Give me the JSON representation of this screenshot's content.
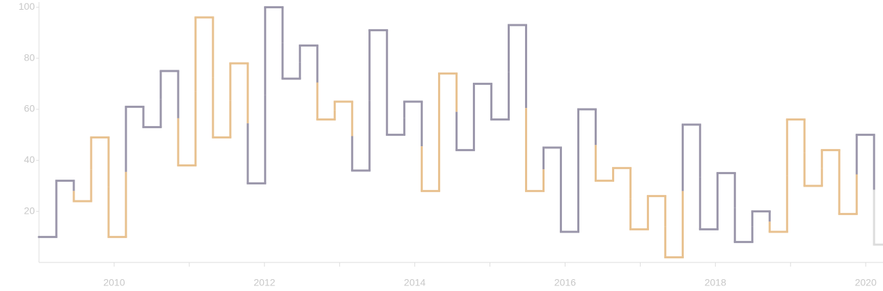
{
  "chart_data": {
    "type": "step",
    "x": [
      2009.0,
      2009.231,
      2009.463,
      2009.694,
      2009.926,
      2010.157,
      2010.389,
      2010.62,
      2010.852,
      2011.083,
      2011.315,
      2011.546,
      2011.778,
      2012.009,
      2012.241,
      2012.472,
      2012.704,
      2012.935,
      2013.167,
      2013.398,
      2013.63,
      2013.861,
      2014.093,
      2014.324,
      2014.556,
      2014.787,
      2015.019,
      2015.25,
      2015.481,
      2015.713,
      2015.944,
      2016.176,
      2016.407,
      2016.639,
      2016.87,
      2017.102,
      2017.333,
      2017.565,
      2017.796,
      2018.028,
      2018.259,
      2018.491,
      2018.722,
      2018.954,
      2019.185,
      2019.417,
      2019.648,
      2019.88,
      2020.111
    ],
    "values": [
      10,
      32,
      24,
      49,
      10,
      61,
      53,
      75,
      38,
      96,
      49,
      78,
      31,
      100,
      72,
      85,
      56,
      63,
      36,
      91,
      50,
      63,
      28,
      74,
      44,
      70,
      56,
      93,
      28,
      45,
      12,
      60,
      32,
      37,
      13,
      26,
      2,
      54,
      13,
      35,
      8,
      20,
      12,
      56,
      30,
      44,
      19,
      50,
      7
    ],
    "colors": [
      "#9a96aa",
      "#9a96aa",
      "#e8c18f",
      "#e8c18f",
      "#e8c18f",
      "#9a96aa",
      "#9a96aa",
      "#9a96aa",
      "#e8c18f",
      "#e8c18f",
      "#e8c18f",
      "#e8c18f",
      "#9a96aa",
      "#9a96aa",
      "#9a96aa",
      "#9a96aa",
      "#e8c18f",
      "#e8c18f",
      "#9a96aa",
      "#9a96aa",
      "#9a96aa",
      "#9a96aa",
      "#e8c18f",
      "#e8c18f",
      "#9a96aa",
      "#9a96aa",
      "#9a96aa",
      "#9a96aa",
      "#e8c18f",
      "#9a96aa",
      "#9a96aa",
      "#9a96aa",
      "#e8c18f",
      "#e8c18f",
      "#e8c18f",
      "#e8c18f",
      "#e8c18f",
      "#9a96aa",
      "#9a96aa",
      "#9a96aa",
      "#9a96aa",
      "#9a96aa",
      "#e8c18f",
      "#e8c18f",
      "#e8c18f",
      "#e8c18f",
      "#e8c18f",
      "#9a96aa",
      "#dddddd"
    ],
    "xlim": [
      2009,
      2020.23
    ],
    "xticks": [
      2010,
      2012,
      2014,
      2016,
      2018,
      2020
    ],
    "xminor_ticks": [
      2011,
      2013,
      2015,
      2017,
      2019
    ],
    "ylim": [
      0,
      102
    ],
    "yticks": [
      20,
      40,
      60,
      80,
      100
    ],
    "grid": false
  }
}
